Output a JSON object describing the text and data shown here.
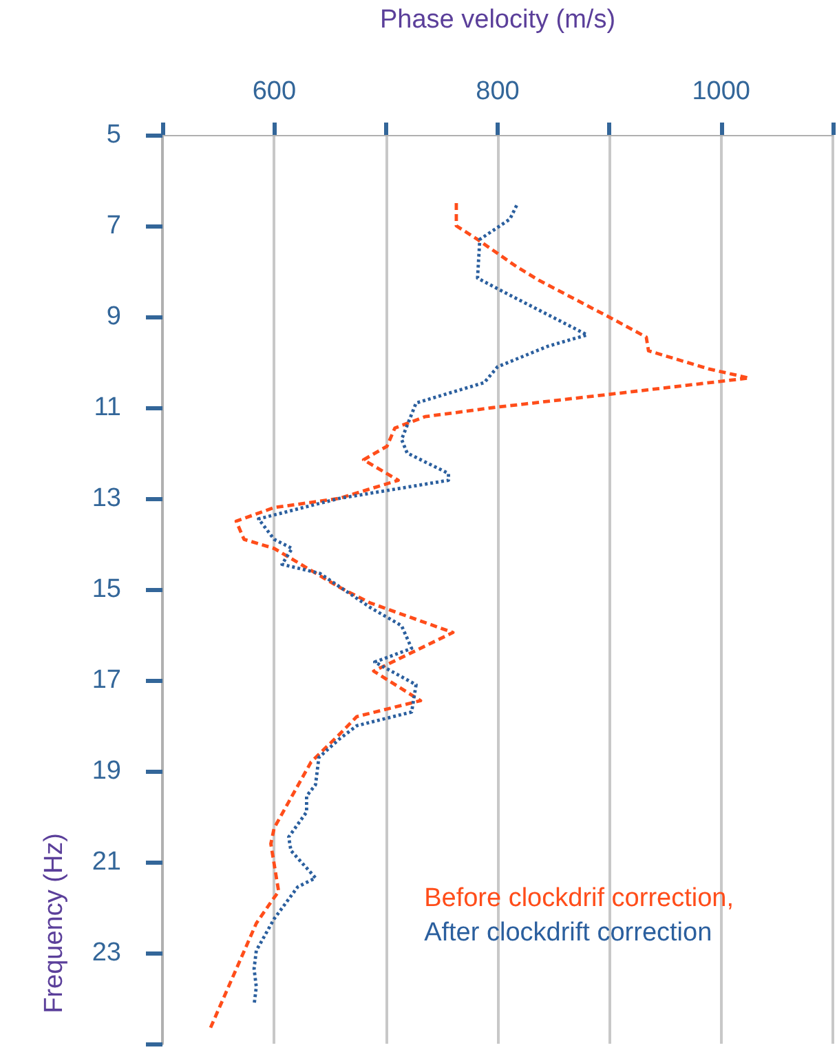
{
  "chart_data": {
    "type": "line",
    "xlabel": "Phase velocity (m/s)",
    "ylabel": "Frequency (Hz)",
    "xlim": [
      500,
      1100
    ],
    "xticks": [
      {
        "value": 500,
        "label": null
      },
      600,
      {
        "value": 700,
        "label": null
      },
      800,
      {
        "value": 900,
        "label": null
      },
      1000,
      {
        "value": 1100,
        "label": null
      }
    ],
    "ylim": [
      25,
      5
    ],
    "yticks": [
      5,
      7,
      9,
      11,
      13,
      15,
      17,
      19,
      21,
      23,
      {
        "value": 25,
        "label": null
      }
    ],
    "grid": "x",
    "legend": "bottom right",
    "marker": "none",
    "series": [
      {
        "name": "Before clockdrif correction,",
        "color": "#ff4d1a",
        "line_style": "dashed",
        "x": [
          763,
          763,
          782,
          817,
          837,
          903,
          933,
          935,
          989,
          1025,
          903,
          796,
          735,
          708,
          701,
          680,
          711,
          658,
          600,
          566,
          573,
          600,
          641,
          658,
          686,
          760,
          689,
          731,
          674,
          658,
          633,
          600,
          597,
          604,
          598,
          584,
          543
        ],
        "values": [
          6.5,
          7.0,
          7.3,
          7.9,
          8.2,
          9.05,
          9.45,
          9.75,
          10.15,
          10.35,
          10.7,
          11.0,
          11.2,
          11.45,
          11.85,
          12.15,
          12.6,
          13.0,
          13.2,
          13.5,
          13.9,
          14.1,
          14.7,
          14.95,
          15.3,
          15.95,
          16.8,
          17.45,
          17.8,
          18.2,
          18.8,
          20.25,
          20.6,
          21.65,
          21.85,
          22.35,
          24.65
        ]
      },
      {
        "name": "After clockdrift correction",
        "color": "#2b5f9e",
        "line_style": "dotted",
        "x": [
          817,
          811,
          784,
          782,
          805,
          880,
          845,
          800,
          788,
          727,
          714,
          719,
          756,
          756,
          658,
          586,
          600,
          616,
          607,
          641,
          662,
          686,
          714,
          723,
          690,
          727,
          723,
          674,
          658,
          640,
          637,
          629,
          629,
          613,
          615,
          637,
          621,
          600,
          584,
          582,
          584,
          582
        ],
        "values": [
          6.55,
          6.85,
          7.3,
          8.15,
          8.45,
          9.4,
          9.65,
          10.1,
          10.45,
          10.9,
          11.7,
          12.0,
          12.45,
          12.6,
          13.0,
          13.45,
          13.9,
          14.1,
          14.45,
          14.65,
          15.0,
          15.4,
          15.8,
          16.3,
          16.6,
          17.1,
          17.7,
          18.0,
          18.3,
          18.7,
          19.3,
          19.55,
          19.9,
          20.45,
          20.75,
          21.35,
          21.55,
          22.25,
          22.95,
          23.35,
          23.75,
          24.15
        ]
      }
    ]
  }
}
